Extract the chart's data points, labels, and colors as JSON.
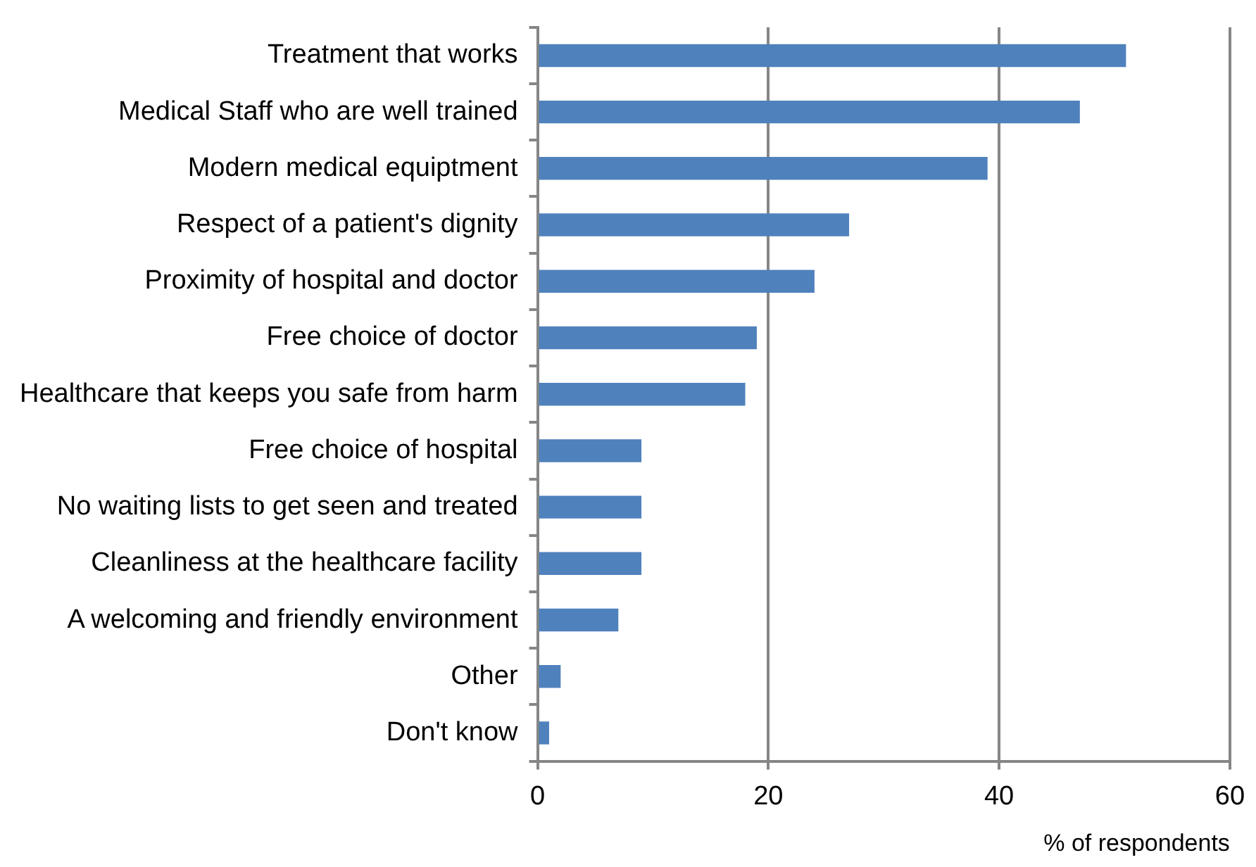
{
  "chart_data": {
    "type": "bar",
    "orientation": "horizontal",
    "xlabel": "% of respondents",
    "categories": [
      "Treatment that works",
      "Medical Staff who are well trained",
      "Modern medical equiptment",
      "Respect of a patient's dignity",
      "Proximity of hospital and doctor",
      "Free choice of doctor",
      "Healthcare that keeps you safe from harm",
      "Free choice of hospital",
      "No waiting lists to get seen and treated",
      "Cleanliness at the healthcare facility",
      "A welcoming and friendly environment",
      "Other",
      "Don't know"
    ],
    "values": [
      51,
      47,
      39,
      27,
      24,
      19,
      18,
      9,
      9,
      9,
      7,
      2,
      1
    ],
    "color": "#4f81bd",
    "xlim": [
      0,
      60
    ],
    "xticks": [
      0,
      20,
      40,
      60
    ],
    "grid": "x",
    "legend": false
  }
}
